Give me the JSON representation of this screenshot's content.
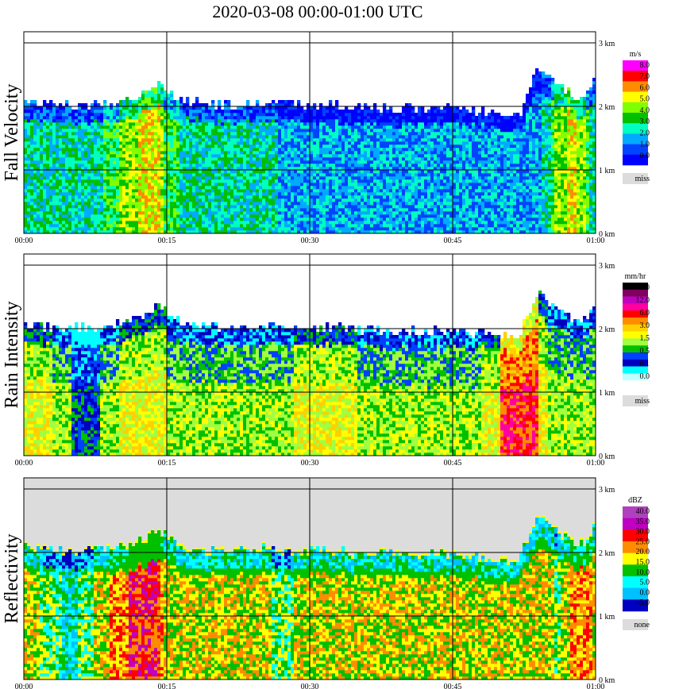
{
  "title": "2020-03-08   00:00-01:00 UTC",
  "panels": [
    {
      "id": "fall-velocity",
      "ylabel": "Fall Velocity",
      "colorbar": {
        "unit": "m/s",
        "labels": [
          "8.0",
          "7.0",
          "6.0",
          "5.0",
          "4.0",
          "3.0",
          "2.0",
          "1.0",
          "0.0"
        ],
        "colors": [
          "#ff00ff",
          "#ff0000",
          "#ff8c00",
          "#ffff00",
          "#80ff00",
          "#00c000",
          "#00ffc0",
          "#00aaff",
          "#0044ff",
          "#0000ff"
        ],
        "miss_label": "miss",
        "miss_color": "#dcdcdc"
      }
    },
    {
      "id": "rain-intensity",
      "ylabel": "Rain Intensity",
      "colorbar": {
        "unit": "mm/hr",
        "labels": [
          "48.0",
          "12.0",
          "6.0",
          "3.0",
          "1.5",
          "0.5",
          "0.1",
          "0.0"
        ],
        "colors": [
          "#000000",
          "#800060",
          "#c000c0",
          "#ff00a0",
          "#ff0000",
          "#ff8c00",
          "#ffd000",
          "#ffff00",
          "#a0ff40",
          "#00c000",
          "#0040ff",
          "#0000c0",
          "#00ffff",
          "#c0ffff",
          "#ffffff"
        ],
        "miss_label": "miss",
        "miss_color": "#dcdcdc"
      }
    },
    {
      "id": "reflectivity",
      "ylabel": "Reflectivity",
      "colorbar": {
        "unit": "dBZ",
        "labels": [
          "40.0",
          "35.0",
          "30.0",
          "25.0",
          "20.0",
          "15.0",
          "10.0",
          "5.0",
          "0.0",
          "-5.0"
        ],
        "colors": [
          "#b040c0",
          "#c000c0",
          "#ff0000",
          "#ff8c00",
          "#ffff00",
          "#00c000",
          "#00ffff",
          "#00c0ff",
          "#0000c0"
        ],
        "miss_label": "none",
        "miss_color": "#dcdcdc"
      }
    }
  ],
  "x_ticks": [
    "00:00",
    "00:15",
    "00:30",
    "00:45",
    "01:00"
  ],
  "y_ticks": [
    "3 km",
    "2 km",
    "1 km",
    "0 km"
  ],
  "chart_data": [
    {
      "type": "heatmap",
      "title": "2020-03-08   00:00-01:00 UTC",
      "ylabel": "Fall Velocity",
      "x_range_minutes": [
        0,
        60
      ],
      "y_range_km": [
        0,
        3.2
      ],
      "colorbar_unit": "m/s",
      "grid": true,
      "approx_column_profile": {
        "minute": [
          0,
          3,
          5,
          8,
          10,
          12,
          14,
          15,
          17,
          20,
          23,
          25,
          27,
          30,
          33,
          35,
          38,
          40,
          43,
          45,
          48,
          50,
          52,
          53,
          54,
          55,
          56,
          57,
          58,
          59,
          60
        ],
        "top_km": [
          2.1,
          2.05,
          2.05,
          2.05,
          2.1,
          2.2,
          2.35,
          2.3,
          2.1,
          2.05,
          2.05,
          2.1,
          2.05,
          2.05,
          2.05,
          2.0,
          2.0,
          2.0,
          2.0,
          2.0,
          1.95,
          1.9,
          1.9,
          2.3,
          2.6,
          2.45,
          2.35,
          2.25,
          2.15,
          2.2,
          2.5
        ],
        "typical_value": [
          2.5,
          2.5,
          2.5,
          3.0,
          4.0,
          5.0,
          5.5,
          3.5,
          3.0,
          2.5,
          2.5,
          3.0,
          2.0,
          2.0,
          2.0,
          2.0,
          2.0,
          2.0,
          2.0,
          2.0,
          2.0,
          2.0,
          2.0,
          2.0,
          2.0,
          2.5,
          4.5,
          5.0,
          5.0,
          4.0,
          2.0
        ]
      }
    },
    {
      "type": "heatmap",
      "ylabel": "Rain Intensity",
      "x_range_minutes": [
        0,
        60
      ],
      "y_range_km": [
        0,
        3.2
      ],
      "colorbar_unit": "mm/hr",
      "grid": true,
      "approx_column_profile": {
        "minute": [
          0,
          3,
          5,
          8,
          10,
          12,
          14,
          15,
          17,
          20,
          23,
          25,
          27,
          30,
          33,
          35,
          38,
          40,
          43,
          45,
          48,
          50,
          52,
          53,
          54,
          55,
          56,
          57,
          58,
          59,
          60
        ],
        "top_km": [
          2.1,
          2.05,
          2.05,
          2.05,
          2.1,
          2.2,
          2.35,
          2.3,
          2.1,
          2.05,
          2.05,
          2.1,
          2.05,
          2.05,
          2.05,
          2.0,
          2.0,
          2.0,
          2.0,
          2.0,
          1.95,
          1.9,
          1.9,
          2.3,
          2.6,
          2.45,
          2.35,
          2.25,
          2.15,
          2.2,
          2.5
        ],
        "typical_value": [
          3.0,
          1.5,
          0.5,
          0.5,
          1.5,
          3.0,
          3.0,
          1.5,
          1.5,
          1.5,
          1.5,
          1.5,
          0.5,
          3.0,
          3.0,
          1.5,
          0.5,
          1.5,
          1.5,
          1.5,
          1.5,
          3.0,
          6.0,
          6.0,
          3.0,
          1.5,
          0.5,
          1.5,
          1.5,
          1.5,
          0.5
        ]
      }
    },
    {
      "type": "heatmap",
      "ylabel": "Reflectivity",
      "x_range_minutes": [
        0,
        60
      ],
      "y_range_km": [
        0,
        3.2
      ],
      "colorbar_unit": "dBZ",
      "grid": true,
      "approx_column_profile": {
        "minute": [
          0,
          3,
          5,
          8,
          10,
          12,
          14,
          15,
          17,
          20,
          23,
          25,
          27,
          30,
          33,
          35,
          38,
          40,
          43,
          45,
          48,
          50,
          52,
          53,
          54,
          55,
          56,
          57,
          58,
          59,
          60
        ],
        "top_km": [
          2.1,
          2.05,
          2.05,
          2.05,
          2.1,
          2.2,
          2.35,
          2.3,
          2.1,
          2.05,
          2.05,
          2.1,
          2.05,
          2.05,
          2.05,
          2.0,
          2.0,
          2.0,
          2.0,
          2.0,
          1.95,
          1.9,
          1.9,
          2.3,
          2.6,
          2.45,
          2.35,
          2.25,
          2.15,
          2.2,
          2.5
        ],
        "typical_value": [
          20,
          15,
          10,
          20,
          25,
          30,
          30,
          20,
          20,
          20,
          20,
          20,
          15,
          20,
          20,
          20,
          20,
          20,
          20,
          20,
          20,
          20,
          20,
          20,
          20,
          20,
          15,
          20,
          25,
          25,
          20
        ]
      }
    }
  ]
}
